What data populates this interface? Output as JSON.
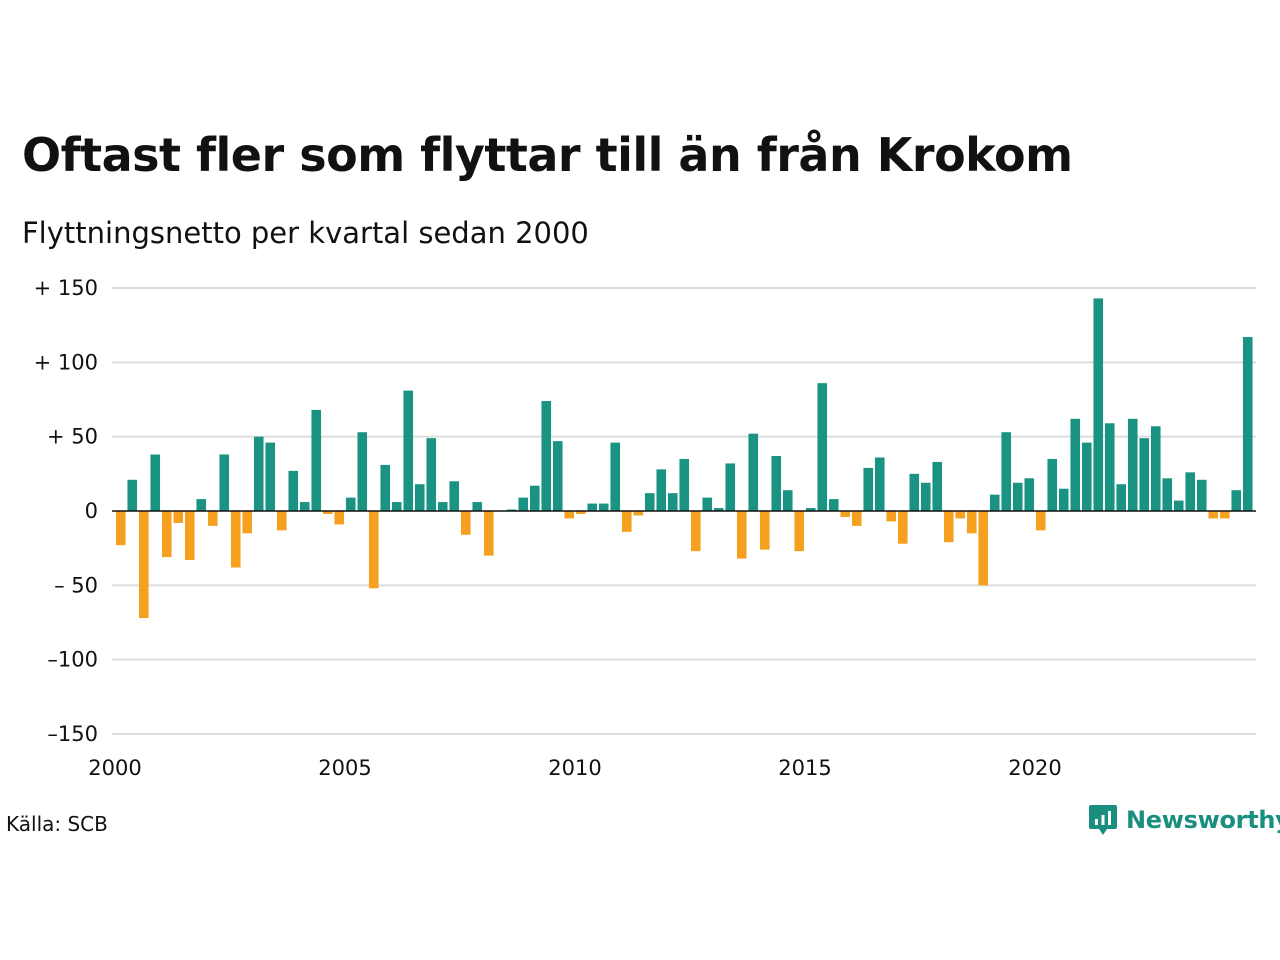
{
  "header": {
    "title": "Oftast fler som flyttar till än från Krokom",
    "subtitle": "Flyttningsnetto per kvartal sedan 2000"
  },
  "footer": {
    "source": "Källa: SCB",
    "brand": "Newsworthy",
    "brand_icon": "newsworthy-logo-icon"
  },
  "colors": {
    "positive": "#1a9383",
    "negative": "#f5a01e",
    "grid": "#dddddd",
    "zero_line": "#111111",
    "brand": "#1a8f80"
  },
  "chart_data": {
    "type": "bar",
    "title": "Oftast fler som flyttar till än från Krokom",
    "subtitle": "Flyttningsnetto per kvartal sedan 2000",
    "xlabel": "",
    "ylabel": "",
    "ylim": [
      -150,
      150
    ],
    "yticks": [
      150,
      100,
      50,
      0,
      -50,
      -100,
      -150
    ],
    "ytick_labels": [
      "+ 150",
      "+ 100",
      "+  50",
      "0",
      "– 50",
      "–100",
      "–150"
    ],
    "xtick_labels": [
      "2000",
      "2005",
      "2010",
      "2015",
      "2020"
    ],
    "start_year": 2000,
    "grid": true,
    "series": [
      {
        "values": [
          -23,
          21,
          -72,
          38,
          -31,
          -8,
          -33,
          8,
          -10,
          38,
          -38,
          -15,
          50,
          46,
          -13,
          27,
          6,
          68,
          -2,
          -9,
          9,
          53,
          -52,
          31,
          6,
          81,
          18,
          49,
          6,
          20,
          -16,
          6,
          -30,
          0,
          1,
          9,
          17,
          74,
          47,
          -5,
          -2,
          5,
          5,
          46,
          -14,
          -3,
          12,
          28,
          12,
          35,
          -27,
          9,
          2,
          32,
          -32,
          52,
          -26,
          37,
          14,
          -27,
          2,
          86,
          8,
          -4,
          -10,
          29,
          36,
          -7,
          -22,
          25,
          19,
          33,
          -21,
          -5,
          -15,
          -50,
          11,
          53,
          19,
          22,
          -13,
          35,
          15,
          62,
          46,
          143,
          59,
          18,
          62,
          49,
          57,
          22,
          7,
          26,
          21,
          -5,
          -5,
          14,
          117
        ]
      }
    ]
  }
}
